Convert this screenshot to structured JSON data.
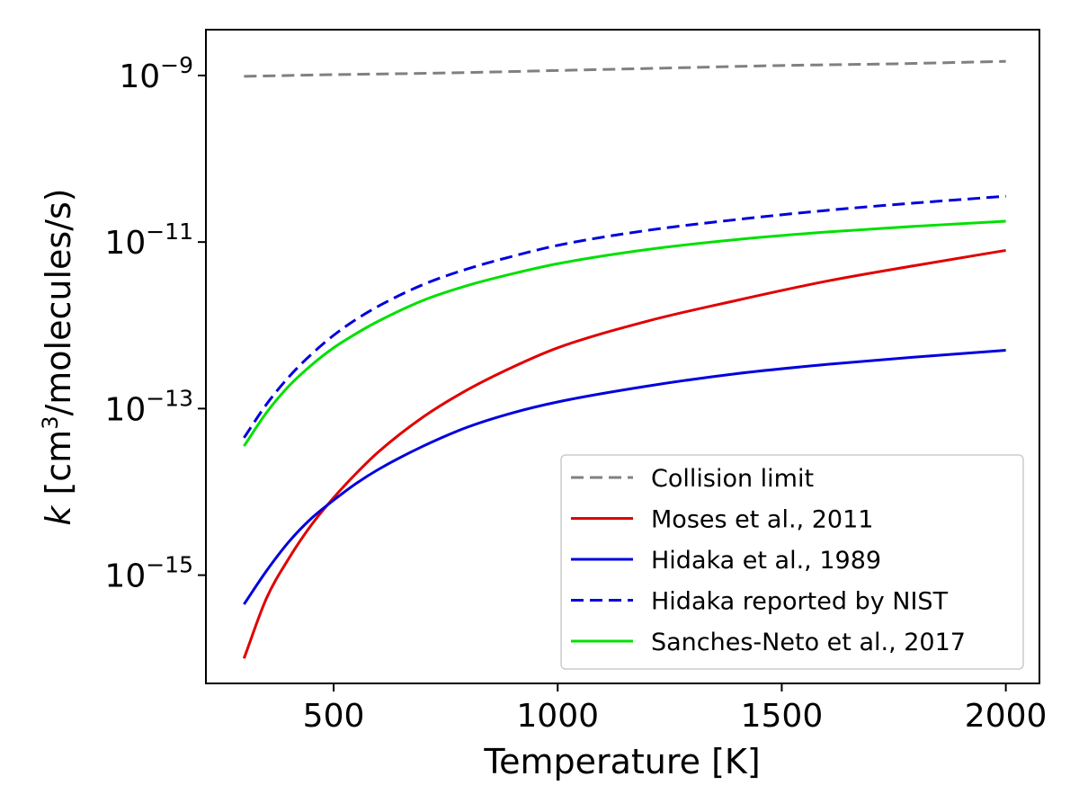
{
  "chart_data": {
    "type": "line",
    "xlabel": "Temperature [K]",
    "ylabel_parts": {
      "italic": "k",
      "pre": " [cm",
      "sup": "3",
      "post": "/molecules/s)"
    },
    "xlim": [
      215,
      2075
    ],
    "ylim_log10": [
      -16.3,
      -8.45
    ],
    "y_scale": "log",
    "grid": false,
    "legend_placement": "lower-right",
    "x_ticks": [
      {
        "value": 500,
        "label": "500"
      },
      {
        "value": 1000,
        "label": "1000"
      },
      {
        "value": 1500,
        "label": "1500"
      },
      {
        "value": 2000,
        "label": "2000"
      }
    ],
    "y_ticks": [
      {
        "value": -9,
        "base": "10",
        "exp": "−9"
      },
      {
        "value": -11,
        "base": "10",
        "exp": "−11"
      },
      {
        "value": -13,
        "base": "10",
        "exp": "−13"
      },
      {
        "value": -15,
        "base": "10",
        "exp": "−15"
      }
    ],
    "series": [
      {
        "name": "Collision limit",
        "color": "#808080",
        "dash": "dashed",
        "x": [
          300,
          500,
          750,
          1000,
          1250,
          1500,
          1750,
          2000
        ],
        "log10_y": [
          -9.01,
          -8.99,
          -8.97,
          -8.94,
          -8.91,
          -8.88,
          -8.86,
          -8.83
        ]
      },
      {
        "name": "Moses et al., 2011",
        "color": "#e00000",
        "dash": "solid",
        "x": [
          300,
          350,
          400,
          450,
          500,
          550,
          600,
          700,
          800,
          900,
          1000,
          1200,
          1400,
          1600,
          1800,
          2000
        ],
        "log10_y": [
          -16.0,
          -15.28,
          -14.8,
          -14.4,
          -14.07,
          -13.78,
          -13.52,
          -13.1,
          -12.77,
          -12.5,
          -12.27,
          -11.95,
          -11.7,
          -11.47,
          -11.28,
          -11.1
        ]
      },
      {
        "name": "Hidaka et al., 1989",
        "color": "#0000dd",
        "dash": "solid",
        "x": [
          300,
          350,
          400,
          450,
          500,
          550,
          600,
          700,
          800,
          900,
          1000,
          1200,
          1400,
          1600,
          1800,
          2000
        ],
        "log10_y": [
          -15.35,
          -14.95,
          -14.6,
          -14.32,
          -14.1,
          -13.9,
          -13.73,
          -13.45,
          -13.22,
          -13.05,
          -12.92,
          -12.73,
          -12.58,
          -12.47,
          -12.38,
          -12.3
        ]
      },
      {
        "name": "Hidaka reported by NIST",
        "color": "#0000dd",
        "dash": "dashed",
        "x": [
          300,
          350,
          400,
          450,
          500,
          550,
          600,
          700,
          800,
          900,
          1000,
          1200,
          1400,
          1600,
          1800,
          2000
        ],
        "log10_y": [
          -13.35,
          -12.95,
          -12.62,
          -12.35,
          -12.12,
          -11.93,
          -11.77,
          -11.51,
          -11.32,
          -11.17,
          -11.04,
          -10.86,
          -10.73,
          -10.62,
          -10.53,
          -10.45
        ]
      },
      {
        "name": "Sanches-Neto et al., 2017",
        "color": "#00e000",
        "dash": "solid",
        "x": [
          300,
          350,
          400,
          450,
          500,
          550,
          600,
          700,
          800,
          900,
          1000,
          1200,
          1400,
          1600,
          1800,
          2000
        ],
        "log10_y": [
          -13.45,
          -13.05,
          -12.73,
          -12.48,
          -12.27,
          -12.1,
          -11.95,
          -11.7,
          -11.52,
          -11.38,
          -11.26,
          -11.09,
          -10.97,
          -10.88,
          -10.81,
          -10.75
        ]
      }
    ]
  }
}
